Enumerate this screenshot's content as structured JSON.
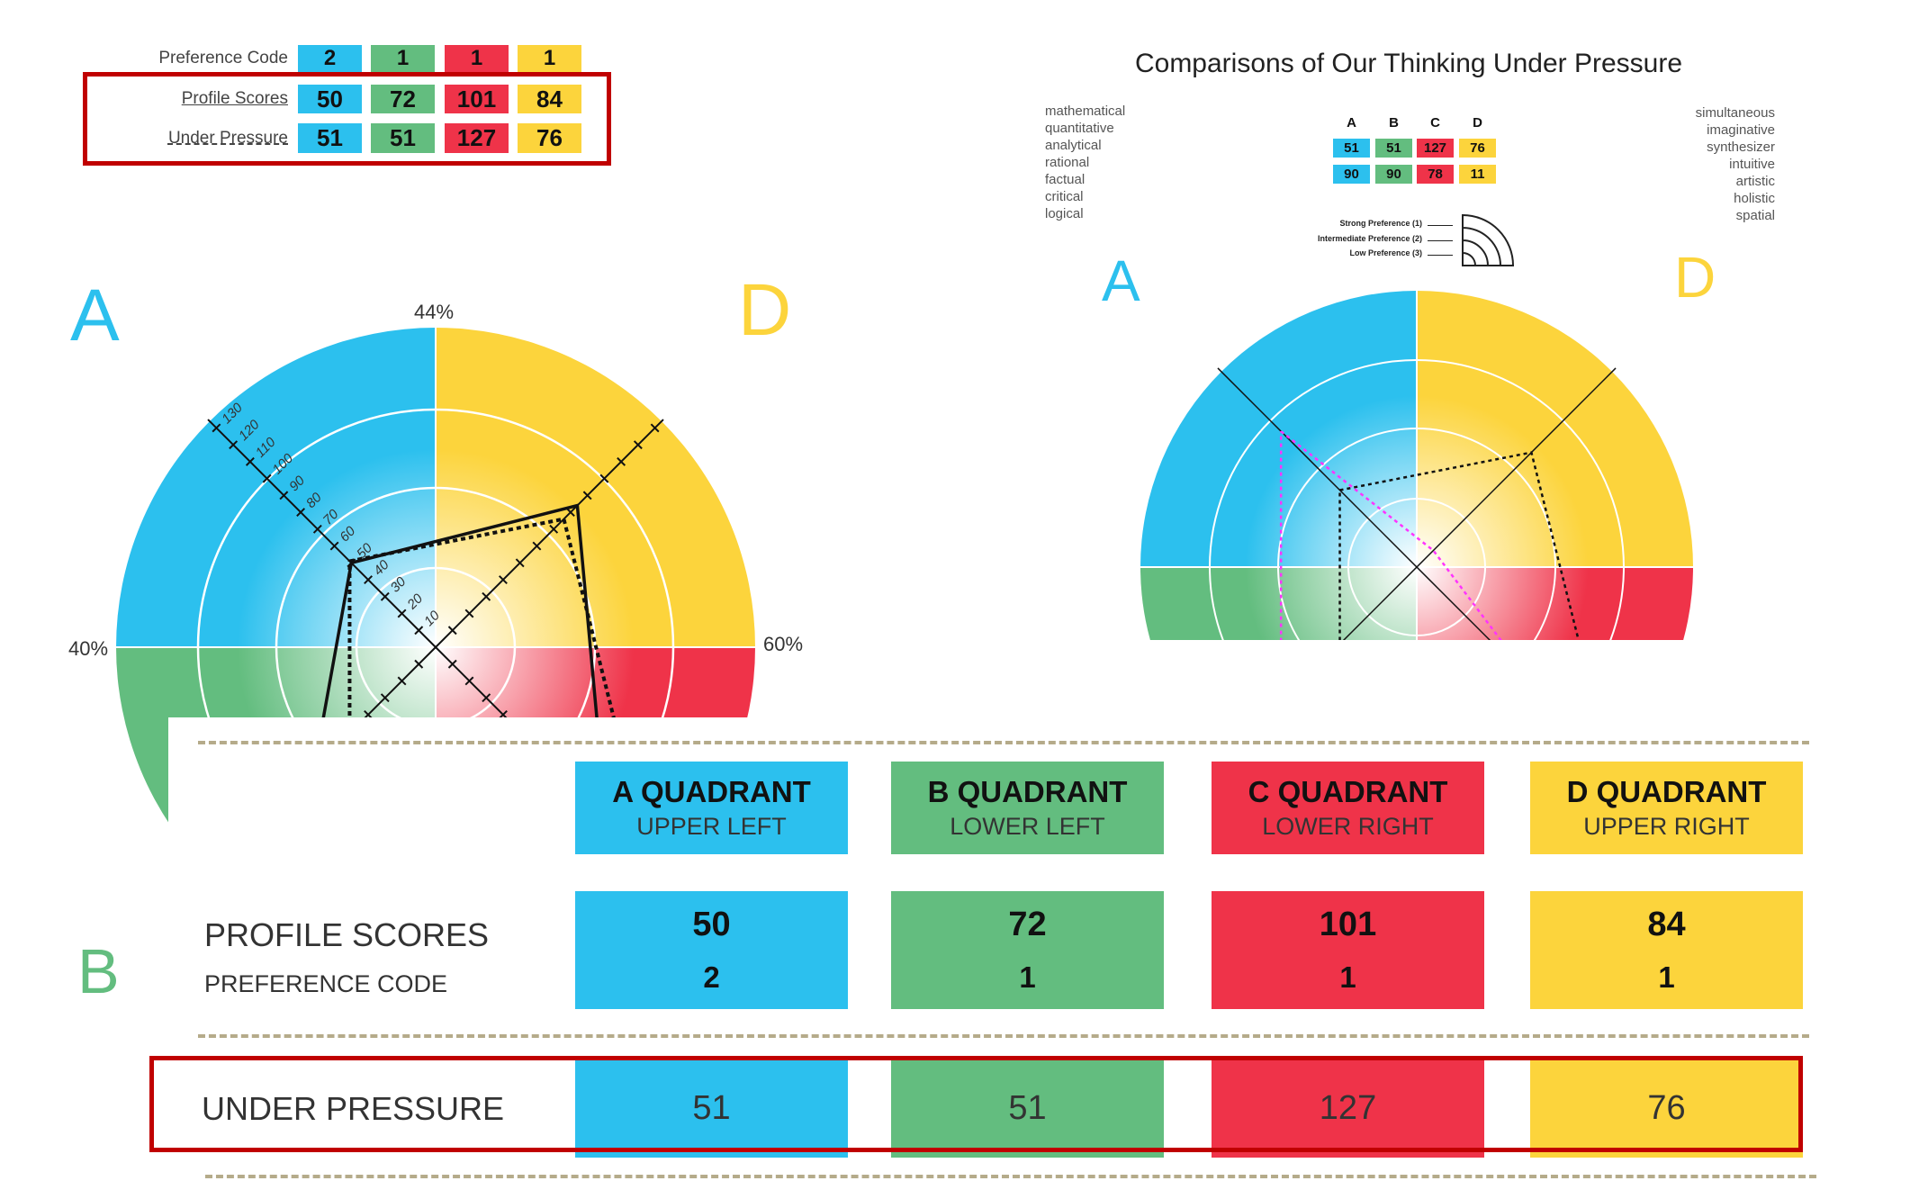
{
  "colors": {
    "A": "#2cc0ee",
    "B": "#63bd7f",
    "C": "#ef3349",
    "D": "#fcd43c",
    "highlight": "#c00000",
    "divider": "#b5ab8a"
  },
  "summary_table": {
    "rows": [
      {
        "label": "Preference Code",
        "values": [
          "2",
          "1",
          "1",
          "1"
        ]
      },
      {
        "label": "Profile Scores",
        "values": [
          "50",
          "72",
          "101",
          "84"
        ]
      },
      {
        "label": "Under Pressure",
        "values": [
          "51",
          "51",
          "127",
          "76"
        ]
      }
    ]
  },
  "profile_chart": {
    "quadrant_letters": {
      "A": "A",
      "D": "D",
      "B": "B"
    },
    "percent_top": "44%",
    "percent_left": "40%",
    "percent_right": "60%"
  },
  "comparison": {
    "title": "Comparisons of Our Thinking Under Pressure",
    "left_words": [
      "mathematical",
      "quantitative",
      "analytical",
      "rational",
      "factual",
      "critical",
      "logical"
    ],
    "right_words": [
      "simultaneous",
      "imaginative",
      "synthesizer",
      "intuitive",
      "artistic",
      "holistic",
      "spatial"
    ],
    "mini_headers": [
      "A",
      "B",
      "C",
      "D"
    ],
    "mini_rows": [
      [
        "51",
        "51",
        "127",
        "76"
      ],
      [
        "90",
        "90",
        "78",
        "11"
      ]
    ],
    "legend": [
      "Strong Preference (1)",
      "Intermediate Preference (2)",
      "Low Preference (3)"
    ],
    "letters": {
      "A": "A",
      "D": "D"
    }
  },
  "quadrant_table": {
    "headers": [
      {
        "title": "A QUADRANT",
        "sub": "UPPER LEFT"
      },
      {
        "title": "B QUADRANT",
        "sub": "LOWER LEFT"
      },
      {
        "title": "C QUADRANT",
        "sub": "LOWER RIGHT"
      },
      {
        "title": "D QUADRANT",
        "sub": "UPPER RIGHT"
      }
    ],
    "profile_label": "PROFILE SCORES",
    "preference_label": "PREFERENCE CODE",
    "profile_scores": [
      "50",
      "72",
      "101",
      "84"
    ],
    "preference_codes": [
      "2",
      "1",
      "1",
      "1"
    ],
    "under_pressure_label": "UNDER PRESSURE",
    "under_pressure": [
      "51",
      "51",
      "127",
      "76"
    ]
  },
  "chart_data": [
    {
      "type": "radar",
      "axes": [
        "A",
        "B",
        "C",
        "D"
      ],
      "axis_ticks": [
        10,
        20,
        30,
        40,
        50,
        60,
        70,
        80,
        90,
        100,
        110,
        120,
        130
      ],
      "series": [
        {
          "style": "solid",
          "values": {
            "A": 50,
            "B": 72,
            "C": 101,
            "D": 84
          }
        },
        {
          "style": "dotted",
          "values": {
            "A": 51,
            "B": 51,
            "C": 127,
            "D": 76
          }
        }
      ]
    },
    {
      "type": "radar",
      "title": "Comparisons of Our Thinking Under Pressure",
      "axes": [
        "A",
        "B",
        "C",
        "D"
      ],
      "series": [
        {
          "style": "dotted",
          "color": "#000000",
          "values": {
            "A": 51,
            "B": 51,
            "C": 127,
            "D": 76
          }
        },
        {
          "style": "dotted",
          "color": "#ff33ff",
          "values": {
            "A": 90,
            "B": 90,
            "C": 78,
            "D": 11
          }
        }
      ]
    }
  ]
}
